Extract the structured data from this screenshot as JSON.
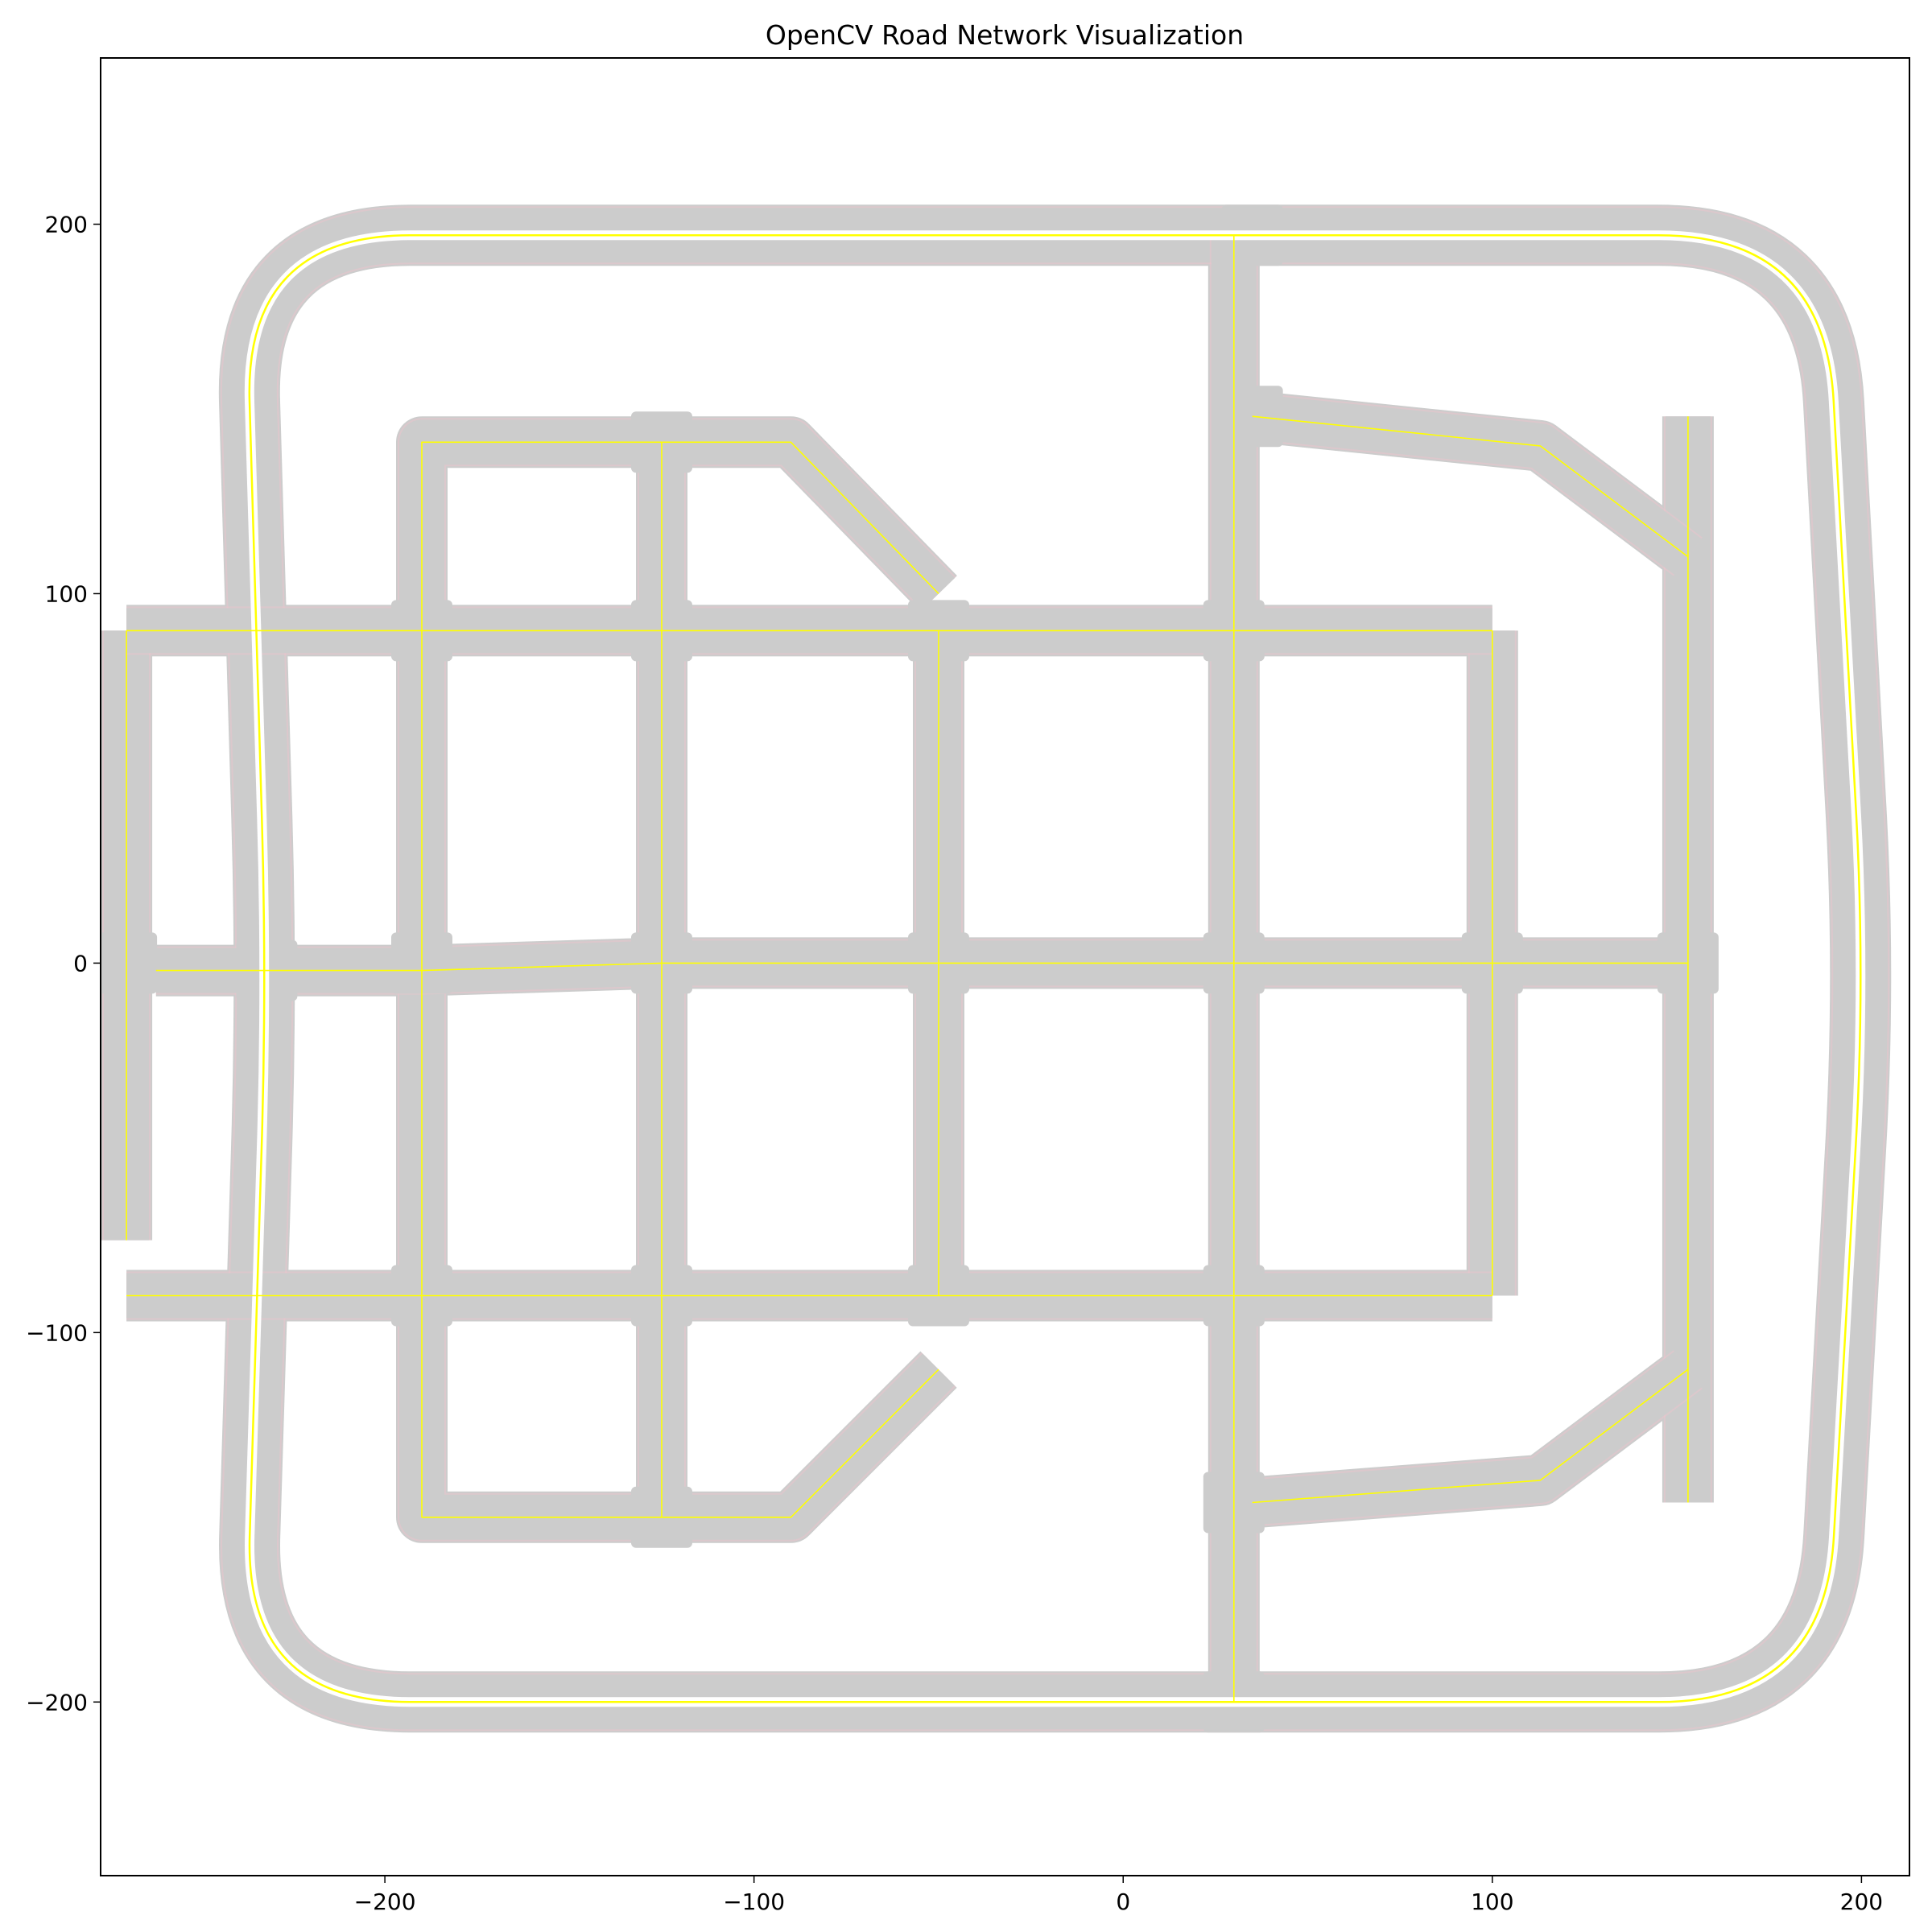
{
  "chart_data": {
    "type": "line",
    "title": "OpenCV Road Network Visualization",
    "xlabel": "",
    "ylabel": "",
    "xlim": [
      -277,
      213
    ],
    "ylim": [
      -247,
      245
    ],
    "xticks": [
      -200,
      -100,
      0,
      100,
      200
    ],
    "yticks": [
      -200,
      -100,
      0,
      100,
      200
    ],
    "xtick_labels": [
      "−200",
      "−100",
      "0",
      "100",
      "200"
    ],
    "ytick_labels": [
      "−200",
      "−100",
      "0",
      "100",
      "200"
    ],
    "grid": false,
    "legend": "none",
    "colors": {
      "road_surface": "#cccccc",
      "lane_line": "#ffc0cb",
      "center_line": "#ffff00",
      "shoulder": "#ffffff",
      "frame": "#000000"
    },
    "series": [
      {
        "kind": "outer-ring",
        "closed": true,
        "corner_radius": 45,
        "points": [
          [
            -238,
            197
          ],
          [
            190,
            197
          ],
          [
            201,
            -4
          ],
          [
            190,
            -200
          ],
          [
            -238,
            -200
          ],
          [
            -232,
            -5
          ]
        ]
      },
      {
        "kind": "vertical",
        "points": [
          [
            -270,
            0
          ],
          [
            -270,
            -75
          ]
        ]
      },
      {
        "kind": "vertical",
        "points": [
          [
            -270,
            0
          ],
          [
            -270,
            90
          ]
        ]
      },
      {
        "kind": "vertical",
        "points": [
          [
            -190,
            90
          ],
          [
            -190,
            141
          ],
          [
            -160,
            141
          ]
        ]
      },
      {
        "kind": "vertical",
        "points": [
          [
            -190,
            -90
          ],
          [
            -190,
            -150
          ],
          [
            -160,
            -150
          ]
        ]
      },
      {
        "kind": "vertical",
        "points": [
          [
            -190,
            90
          ],
          [
            -190,
            -90
          ]
        ]
      },
      {
        "kind": "vertical",
        "points": [
          [
            -125,
            141
          ],
          [
            -125,
            -150
          ]
        ]
      },
      {
        "kind": "vertical",
        "points": [
          [
            -50,
            90
          ],
          [
            -50,
            -90
          ]
        ]
      },
      {
        "kind": "vertical",
        "points": [
          [
            30,
            197
          ],
          [
            30,
            -200
          ]
        ]
      },
      {
        "kind": "vertical",
        "points": [
          [
            100,
            90
          ],
          [
            100,
            -90
          ]
        ]
      },
      {
        "kind": "vertical",
        "points": [
          [
            153,
            148
          ],
          [
            153,
            -146
          ]
        ]
      },
      {
        "kind": "horizontal",
        "points": [
          [
            -270,
            90
          ],
          [
            30,
            90
          ],
          [
            100,
            90
          ]
        ]
      },
      {
        "kind": "horizontal",
        "points": [
          [
            -262,
            -2
          ],
          [
            -190,
            -2
          ],
          [
            -125,
            0
          ],
          [
            -50,
            0
          ],
          [
            30,
            0
          ],
          [
            100,
            0
          ],
          [
            153,
            0
          ]
        ]
      },
      {
        "kind": "horizontal",
        "points": [
          [
            -270,
            -90
          ],
          [
            30,
            -90
          ],
          [
            100,
            -90
          ]
        ]
      },
      {
        "kind": "horizontal",
        "points": [
          [
            -160,
            141
          ],
          [
            -90,
            141
          ],
          [
            -50,
            100
          ]
        ]
      },
      {
        "kind": "horizontal",
        "points": [
          [
            -160,
            -150
          ],
          [
            -90,
            -150
          ],
          [
            -50,
            -110
          ]
        ]
      },
      {
        "kind": "horizontal",
        "points": [
          [
            35,
            148
          ],
          [
            113,
            140
          ],
          [
            153,
            110
          ]
        ]
      },
      {
        "kind": "horizontal",
        "points": [
          [
            35,
            -146
          ],
          [
            113,
            -140
          ],
          [
            153,
            -110
          ]
        ]
      }
    ],
    "intersections": [
      [
        -270,
        0
      ],
      [
        -232,
        -2
      ],
      [
        -190,
        90
      ],
      [
        -125,
        90
      ],
      [
        -50,
        90
      ],
      [
        30,
        90
      ],
      [
        -190,
        0
      ],
      [
        -125,
        0
      ],
      [
        -50,
        0
      ],
      [
        30,
        0
      ],
      [
        100,
        0
      ],
      [
        153,
        0
      ],
      [
        -190,
        -90
      ],
      [
        -125,
        -90
      ],
      [
        -50,
        -90
      ],
      [
        30,
        -90
      ],
      [
        -125,
        141
      ],
      [
        -125,
        -150
      ],
      [
        35,
        197
      ],
      [
        35,
        148
      ],
      [
        30,
        -146
      ],
      [
        30,
        -200
      ]
    ]
  }
}
